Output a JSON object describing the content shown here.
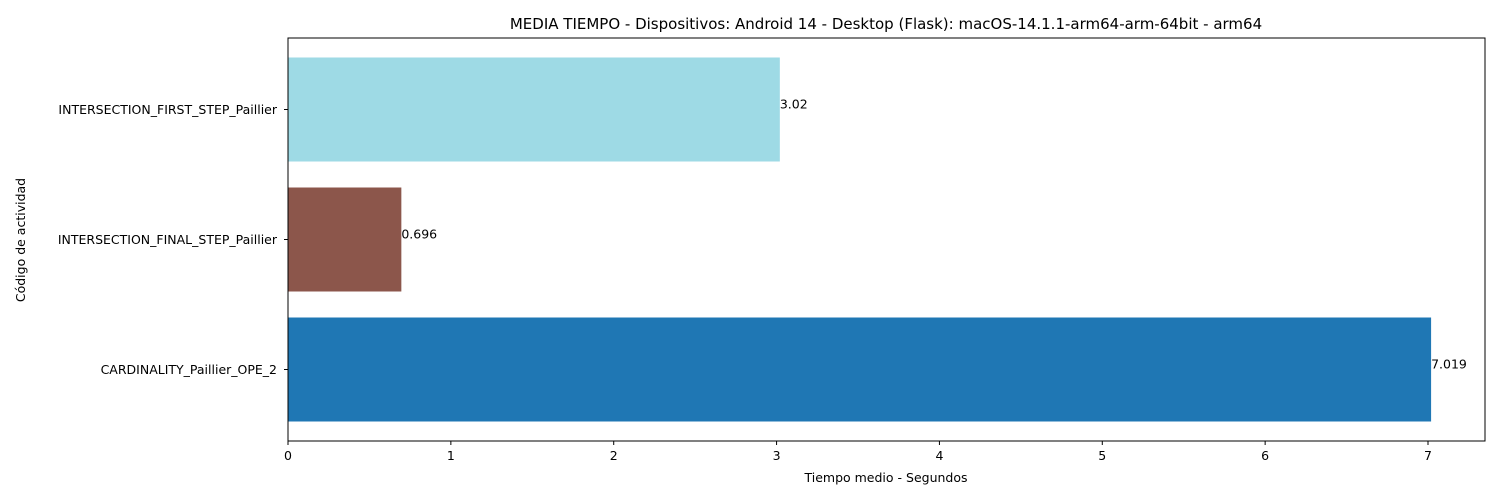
{
  "chart_data": {
    "type": "bar",
    "orientation": "horizontal",
    "title": "MEDIA TIEMPO - Dispositivos: Android 14 - Desktop (Flask): macOS-14.1.1-arm64-arm-64bit - arm64",
    "xlabel": "Tiempo medio - Segundos",
    "ylabel": "Código de actividad",
    "xlim": [
      0,
      7.35
    ],
    "xticks": [
      0,
      1,
      2,
      3,
      4,
      5,
      6,
      7
    ],
    "grid": false,
    "categories": [
      "INTERSECTION_FIRST_STEP_Paillier",
      "INTERSECTION_FINAL_STEP_Paillier",
      "CARDINALITY_Paillier_OPE_2"
    ],
    "values": [
      3.02,
      0.696,
      7.019
    ],
    "value_labels": [
      "3.02",
      "0.696",
      "7.019"
    ],
    "colors": [
      "#9edae5",
      "#8c564b",
      "#1f77b4"
    ]
  }
}
